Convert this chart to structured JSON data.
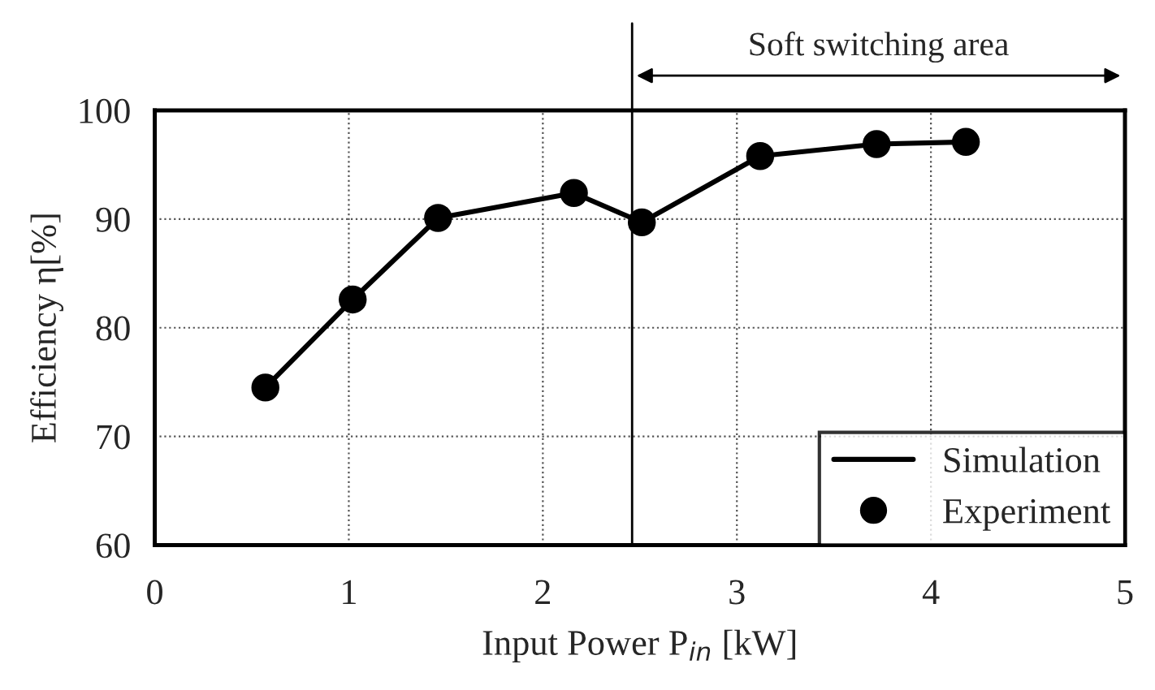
{
  "chart_data": {
    "type": "line",
    "xlabel": "Input Power P$_{in}$ [kW]",
    "ylabel": "Efficiency η[%]",
    "x": [
      0.57,
      1.02,
      1.46,
      2.16,
      2.51,
      3.12,
      3.72,
      4.18
    ],
    "series": [
      {
        "name": "Simulation",
        "color": "#000000",
        "marker": "none",
        "line_style": "solid",
        "values": [
          74.5,
          82.6,
          90.1,
          92.4,
          89.7,
          95.8,
          96.9,
          97.1
        ]
      },
      {
        "name": "Experiment",
        "type": "scatter",
        "color": "#000000",
        "marker": "circle",
        "values": [
          74.5,
          82.6,
          90.1,
          92.4,
          89.7,
          95.8,
          96.9,
          97.1
        ]
      }
    ],
    "xlim": [
      0,
      5
    ],
    "xticks": [
      0,
      1,
      2,
      3,
      4,
      5
    ],
    "ylim": [
      60,
      100
    ],
    "yticks": [
      60,
      70,
      80,
      90,
      100
    ],
    "grid": true,
    "legend": "bottom right",
    "ref_lines": [
      {
        "axis": "x",
        "value": 2.46,
        "color": "#000000"
      }
    ],
    "annotations": [
      "Soft switching area"
    ]
  }
}
